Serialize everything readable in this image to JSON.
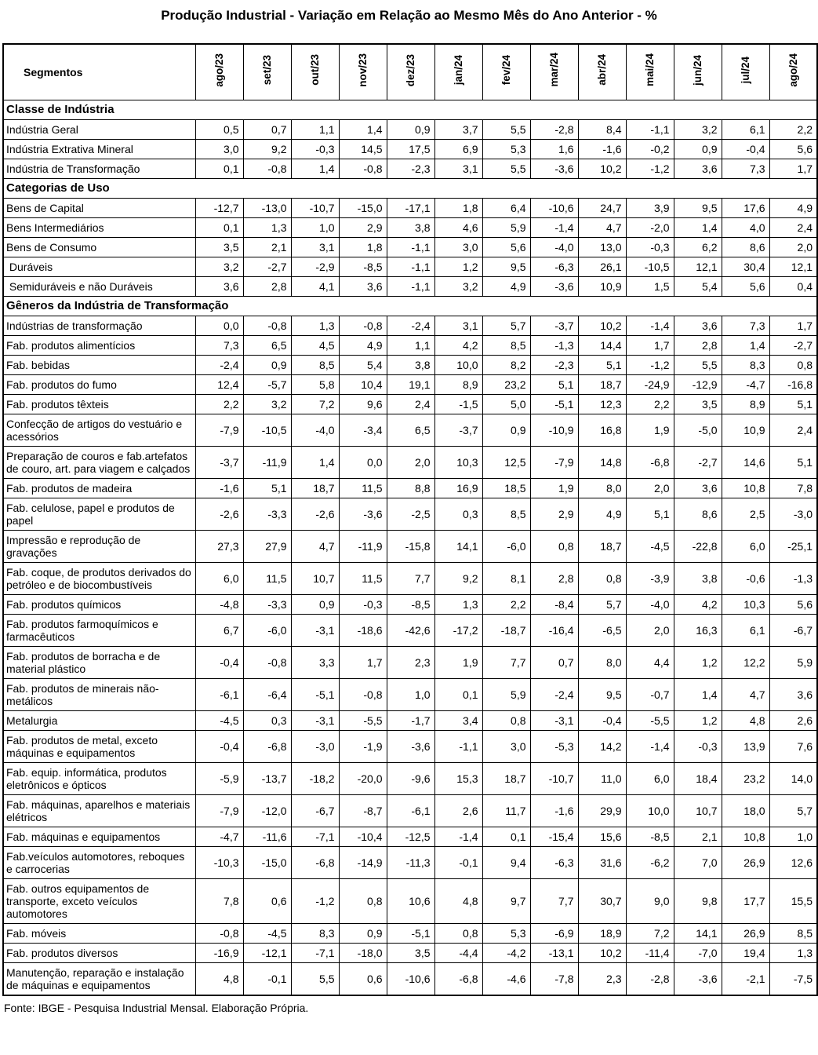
{
  "title": "Produção Industrial - Variação em Relação ao Mesmo Mês do Ano Anterior - %",
  "footer": "Fonte: IBGE - Pesquisa Industrial Mensal. Elaboração Própria.",
  "table": {
    "header": {
      "segments_label": "Segmentos",
      "months": [
        "ago/23",
        "set/23",
        "out/23",
        "nov/23",
        "dez/23",
        "jan/24",
        "fev/24",
        "mar/24",
        "abr/24",
        "mai/24",
        "jun/24",
        "jul/24",
        "ago/24"
      ]
    },
    "sections": [
      {
        "label": "Classe de Indústria",
        "rows": [
          {
            "label": "Indústria Geral",
            "values": [
              "0,5",
              "0,7",
              "1,1",
              "1,4",
              "0,9",
              "3,7",
              "5,5",
              "-2,8",
              "8,4",
              "-1,1",
              "3,2",
              "6,1",
              "2,2"
            ]
          },
          {
            "label": "Indústria Extrativa Mineral",
            "values": [
              "3,0",
              "9,2",
              "-0,3",
              "14,5",
              "17,5",
              "6,9",
              "5,3",
              "1,6",
              "-1,6",
              "-0,2",
              "0,9",
              "-0,4",
              "5,6"
            ]
          },
          {
            "label": "Indústria de Transformação",
            "values": [
              "0,1",
              "-0,8",
              "1,4",
              "-0,8",
              "-2,3",
              "3,1",
              "5,5",
              "-3,6",
              "10,2",
              "-1,2",
              "3,6",
              "7,3",
              "1,7"
            ]
          }
        ]
      },
      {
        "label": "Categorias de Uso",
        "rows": [
          {
            "label": "Bens de Capital",
            "values": [
              "-12,7",
              "-13,0",
              "-10,7",
              "-15,0",
              "-17,1",
              "1,8",
              "6,4",
              "-10,6",
              "24,7",
              "3,9",
              "9,5",
              "17,6",
              "4,9"
            ]
          },
          {
            "label": "Bens Intermediários",
            "values": [
              "0,1",
              "1,3",
              "1,0",
              "2,9",
              "3,8",
              "4,6",
              "5,9",
              "-1,4",
              "4,7",
              "-2,0",
              "1,4",
              "4,0",
              "2,4"
            ]
          },
          {
            "label": "Bens de Consumo",
            "values": [
              "3,5",
              "2,1",
              "3,1",
              "1,8",
              "-1,1",
              "3,0",
              "5,6",
              "-4,0",
              "13,0",
              "-0,3",
              "6,2",
              "8,6",
              "2,0"
            ]
          },
          {
            "label": " Duráveis",
            "values": [
              "3,2",
              "-2,7",
              "-2,9",
              "-8,5",
              "-1,1",
              "1,2",
              "9,5",
              "-6,3",
              "26,1",
              "-10,5",
              "12,1",
              "30,4",
              "12,1"
            ]
          },
          {
            "label": " Semiduráveis e não Duráveis",
            "values": [
              "3,6",
              "2,8",
              "4,1",
              "3,6",
              "-1,1",
              "3,2",
              "4,9",
              "-3,6",
              "10,9",
              "1,5",
              "5,4",
              "5,6",
              "0,4"
            ]
          }
        ]
      },
      {
        "label": "Gêneros da Indústria de Transformação",
        "rows": [
          {
            "label": "Indústrias de transformação",
            "values": [
              "0,0",
              "-0,8",
              "1,3",
              "-0,8",
              "-2,4",
              "3,1",
              "5,7",
              "-3,7",
              "10,2",
              "-1,4",
              "3,6",
              "7,3",
              "1,7"
            ]
          },
          {
            "label": "Fab. produtos alimentícios",
            "values": [
              "7,3",
              "6,5",
              "4,5",
              "4,9",
              "1,1",
              "4,2",
              "8,5",
              "-1,3",
              "14,4",
              "1,7",
              "2,8",
              "1,4",
              "-2,7"
            ]
          },
          {
            "label": "Fab. bebidas",
            "values": [
              "-2,4",
              "0,9",
              "8,5",
              "5,4",
              "3,8",
              "10,0",
              "8,2",
              "-2,3",
              "5,1",
              "-1,2",
              "5,5",
              "8,3",
              "0,8"
            ]
          },
          {
            "label": "Fab. produtos do fumo",
            "values": [
              "12,4",
              "-5,7",
              "5,8",
              "10,4",
              "19,1",
              "8,9",
              "23,2",
              "5,1",
              "18,7",
              "-24,9",
              "-12,9",
              "-4,7",
              "-16,8"
            ]
          },
          {
            "label": "Fab. produtos têxteis",
            "values": [
              "2,2",
              "3,2",
              "7,2",
              "9,6",
              "2,4",
              "-1,5",
              "5,0",
              "-5,1",
              "12,3",
              "2,2",
              "3,5",
              "8,9",
              "5,1"
            ]
          },
          {
            "label": "Confecção de artigos do vestuário e acessórios",
            "values": [
              "-7,9",
              "-10,5",
              "-4,0",
              "-3,4",
              "6,5",
              "-3,7",
              "0,9",
              "-10,9",
              "16,8",
              "1,9",
              "-5,0",
              "10,9",
              "2,4"
            ]
          },
          {
            "label": "Preparação de couros e fab.artefatos de couro, art. para viagem e calçados",
            "values": [
              "-3,7",
              "-11,9",
              "1,4",
              "0,0",
              "2,0",
              "10,3",
              "12,5",
              "-7,9",
              "14,8",
              "-6,8",
              "-2,7",
              "14,6",
              "5,1"
            ]
          },
          {
            "label": "Fab. produtos de madeira",
            "values": [
              "-1,6",
              "5,1",
              "18,7",
              "11,5",
              "8,8",
              "16,9",
              "18,5",
              "1,9",
              "8,0",
              "2,0",
              "3,6",
              "10,8",
              "7,8"
            ]
          },
          {
            "label": "Fab. celulose, papel e produtos de papel",
            "values": [
              "-2,6",
              "-3,3",
              "-2,6",
              "-3,6",
              "-2,5",
              "0,3",
              "8,5",
              "2,9",
              "4,9",
              "5,1",
              "8,6",
              "2,5",
              "-3,0"
            ]
          },
          {
            "label": "Impressão e reprodução de gravações",
            "values": [
              "27,3",
              "27,9",
              "4,7",
              "-11,9",
              "-15,8",
              "14,1",
              "-6,0",
              "0,8",
              "18,7",
              "-4,5",
              "-22,8",
              "6,0",
              "-25,1"
            ]
          },
          {
            "label": "Fab. coque, de produtos derivados do petróleo e de biocombustíveis",
            "values": [
              "6,0",
              "11,5",
              "10,7",
              "11,5",
              "7,7",
              "9,2",
              "8,1",
              "2,8",
              "0,8",
              "-3,9",
              "3,8",
              "-0,6",
              "-1,3"
            ]
          },
          {
            "label": "Fab. produtos químicos",
            "values": [
              "-4,8",
              "-3,3",
              "0,9",
              "-0,3",
              "-8,5",
              "1,3",
              "2,2",
              "-8,4",
              "5,7",
              "-4,0",
              "4,2",
              "10,3",
              "5,6"
            ]
          },
          {
            "label": "Fab. produtos farmoquímicos e farmacêuticos",
            "values": [
              "6,7",
              "-6,0",
              "-3,1",
              "-18,6",
              "-42,6",
              "-17,2",
              "-18,7",
              "-16,4",
              "-6,5",
              "2,0",
              "16,3",
              "6,1",
              "-6,7"
            ]
          },
          {
            "label": "Fab. produtos de borracha e de material plástico",
            "values": [
              "-0,4",
              "-0,8",
              "3,3",
              "1,7",
              "2,3",
              "1,9",
              "7,7",
              "0,7",
              "8,0",
              "4,4",
              "1,2",
              "12,2",
              "5,9"
            ]
          },
          {
            "label": "Fab. produtos de minerais não-metálicos",
            "values": [
              "-6,1",
              "-6,4",
              "-5,1",
              "-0,8",
              "1,0",
              "0,1",
              "5,9",
              "-2,4",
              "9,5",
              "-0,7",
              "1,4",
              "4,7",
              "3,6"
            ]
          },
          {
            "label": "Metalurgia",
            "values": [
              "-4,5",
              "0,3",
              "-3,1",
              "-5,5",
              "-1,7",
              "3,4",
              "0,8",
              "-3,1",
              "-0,4",
              "-5,5",
              "1,2",
              "4,8",
              "2,6"
            ]
          },
          {
            "label": "Fab. produtos de metal, exceto máquinas e equipamentos",
            "values": [
              "-0,4",
              "-6,8",
              "-3,0",
              "-1,9",
              "-3,6",
              "-1,1",
              "3,0",
              "-5,3",
              "14,2",
              "-1,4",
              "-0,3",
              "13,9",
              "7,6"
            ]
          },
          {
            "label": "Fab. equip. informática, produtos eletrônicos e ópticos",
            "values": [
              "-5,9",
              "-13,7",
              "-18,2",
              "-20,0",
              "-9,6",
              "15,3",
              "18,7",
              "-10,7",
              "11,0",
              "6,0",
              "18,4",
              "23,2",
              "14,0"
            ]
          },
          {
            "label": "Fab. máquinas, aparelhos e materiais elétricos",
            "values": [
              "-7,9",
              "-12,0",
              "-6,7",
              "-8,7",
              "-6,1",
              "2,6",
              "11,7",
              "-1,6",
              "29,9",
              "10,0",
              "10,7",
              "18,0",
              "5,7"
            ]
          },
          {
            "label": "Fab. máquinas e equipamentos",
            "values": [
              "-4,7",
              "-11,6",
              "-7,1",
              "-10,4",
              "-12,5",
              "-1,4",
              "0,1",
              "-15,4",
              "15,6",
              "-8,5",
              "2,1",
              "10,8",
              "1,0"
            ]
          },
          {
            "label": "Fab.veículos automotores, reboques e carrocerias",
            "values": [
              "-10,3",
              "-15,0",
              "-6,8",
              "-14,9",
              "-11,3",
              "-0,1",
              "9,4",
              "-6,3",
              "31,6",
              "-6,2",
              "7,0",
              "26,9",
              "12,6"
            ]
          },
          {
            "label": "Fab. outros equipamentos de transporte, exceto veículos automotores",
            "values": [
              "7,8",
              "0,6",
              "-1,2",
              "0,8",
              "10,6",
              "4,8",
              "9,7",
              "7,7",
              "30,7",
              "9,0",
              "9,8",
              "17,7",
              "15,5"
            ]
          },
          {
            "label": "Fab. móveis",
            "values": [
              "-0,8",
              "-4,5",
              "8,3",
              "0,9",
              "-5,1",
              "0,8",
              "5,3",
              "-6,9",
              "18,9",
              "7,2",
              "14,1",
              "26,9",
              "8,5"
            ]
          },
          {
            "label": "Fab. produtos diversos",
            "values": [
              "-16,9",
              "-12,1",
              "-7,1",
              "-18,0",
              "3,5",
              "-4,4",
              "-4,2",
              "-13,1",
              "10,2",
              "-11,4",
              "-7,0",
              "19,4",
              "1,3"
            ]
          },
          {
            "label": "Manutenção, reparação e instalação de máquinas e equipamentos",
            "values": [
              "4,8",
              "-0,1",
              "5,5",
              "0,6",
              "-10,6",
              "-6,8",
              "-4,6",
              "-7,8",
              "2,3",
              "-2,8",
              "-3,6",
              "-2,1",
              "-7,5"
            ]
          }
        ]
      }
    ]
  }
}
